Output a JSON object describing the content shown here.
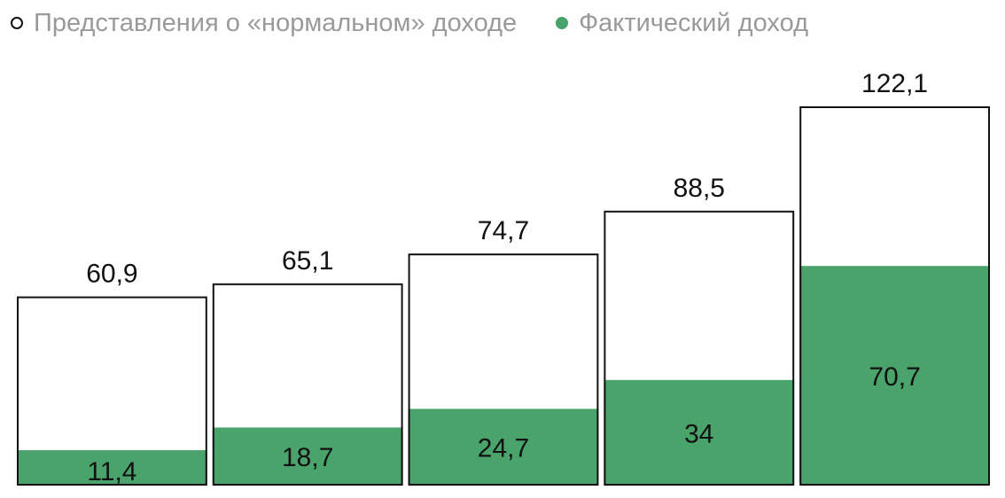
{
  "legend": {
    "expected_label": "Представления о «нормальном» доходе",
    "actual_label": "Фактический доход"
  },
  "colors": {
    "actual_fill": "#4aa36b",
    "expected_fill": "#ffffff",
    "bar_border": "#111111",
    "legend_text": "#9a9a9a"
  },
  "chart_data": {
    "type": "bar",
    "categories": [
      "",
      "",
      "",
      "",
      ""
    ],
    "series": [
      {
        "name": "Представления о «нормальном» доходе",
        "values": [
          60.9,
          65.1,
          74.7,
          88.5,
          122.1
        ]
      },
      {
        "name": "Фактический доход",
        "values": [
          11.4,
          18.7,
          24.7,
          34,
          70.7
        ]
      }
    ],
    "value_labels": {
      "expected": [
        "60,9",
        "65,1",
        "74,7",
        "88,5",
        "122,1"
      ],
      "actual": [
        "11,4",
        "18,7",
        "24,7",
        "34",
        "70,7"
      ]
    },
    "overlapping": true,
    "ylim": [
      0,
      122.1
    ],
    "grid": false,
    "legend_position": "top-left"
  }
}
